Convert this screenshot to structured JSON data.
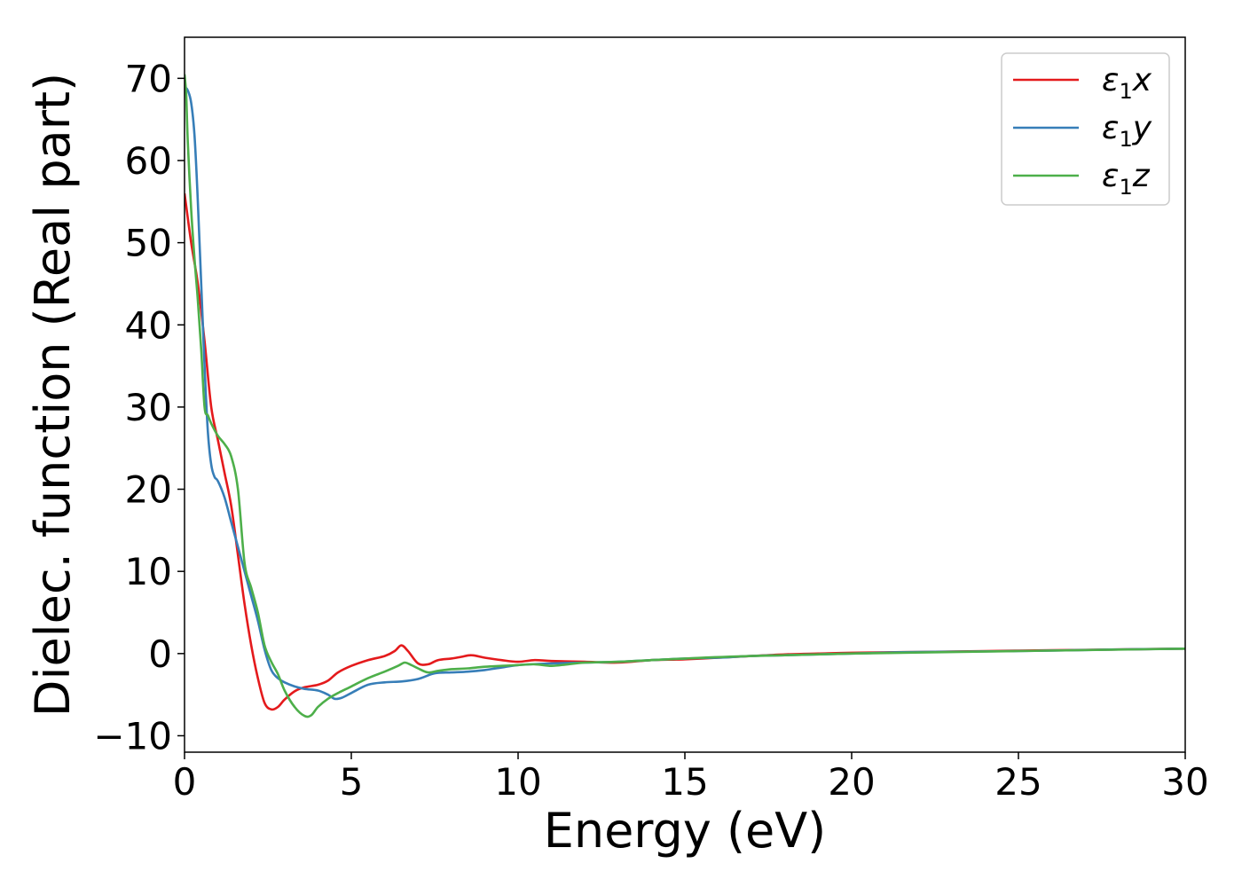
{
  "chart_data": {
    "type": "line",
    "title": "",
    "xlabel": "Energy (eV)",
    "ylabel": "Dielec. function (Real part)",
    "xlim": [
      0,
      30
    ],
    "ylim": [
      -12,
      75
    ],
    "xticks": [
      0,
      5,
      10,
      15,
      20,
      25,
      30
    ],
    "xtick_labels": [
      "0",
      "5",
      "10",
      "15",
      "20",
      "25",
      "30"
    ],
    "yticks": [
      -10,
      0,
      10,
      20,
      30,
      40,
      50,
      60,
      70
    ],
    "ytick_labels": [
      "−10",
      "0",
      "10",
      "20",
      "30",
      "40",
      "50",
      "60",
      "70"
    ],
    "grid": false,
    "legend_position": "top-right",
    "series": [
      {
        "name": "ε₁x",
        "legend_main": "ε",
        "legend_sub": "1",
        "legend_var": "x",
        "color": "#e41a1c",
        "x": [
          0,
          0.2,
          0.4,
          0.6,
          0.8,
          1.0,
          1.2,
          1.4,
          1.6,
          1.8,
          2.0,
          2.2,
          2.4,
          2.6,
          2.8,
          3.0,
          3.3,
          3.6,
          4.0,
          4.3,
          4.6,
          5.0,
          5.5,
          6.0,
          6.3,
          6.5,
          6.7,
          7.0,
          7.3,
          7.6,
          8.0,
          8.3,
          8.6,
          9.0,
          9.5,
          10.0,
          10.5,
          11.0,
          12.0,
          13.0,
          14.0,
          15.0,
          16.0,
          17.0,
          18.0,
          19.0,
          20.0,
          22.0,
          24.0,
          26.0,
          28.0,
          30.0
        ],
        "y": [
          56,
          50,
          45,
          38,
          30,
          26,
          22,
          18,
          12,
          6,
          1,
          -3,
          -6,
          -6.8,
          -6.5,
          -5.6,
          -4.6,
          -4.1,
          -3.8,
          -3.3,
          -2.3,
          -1.5,
          -0.8,
          -0.3,
          0.3,
          1.0,
          0.3,
          -1.2,
          -1.3,
          -0.8,
          -0.6,
          -0.4,
          -0.2,
          -0.5,
          -0.8,
          -1.0,
          -0.8,
          -0.9,
          -1.0,
          -1.1,
          -0.8,
          -0.7,
          -0.5,
          -0.3,
          -0.1,
          0.0,
          0.1,
          0.2,
          0.3,
          0.4,
          0.5,
          0.6
        ]
      },
      {
        "name": "ε₁y",
        "legend_main": "ε",
        "legend_sub": "1",
        "legend_var": "y",
        "color": "#377eb8",
        "x": [
          0,
          0.1,
          0.2,
          0.3,
          0.4,
          0.5,
          0.6,
          0.7,
          0.8,
          0.9,
          1.0,
          1.2,
          1.4,
          1.6,
          1.8,
          2.0,
          2.2,
          2.4,
          2.6,
          2.8,
          3.0,
          3.3,
          3.6,
          4.0,
          4.3,
          4.5,
          4.7,
          5.0,
          5.5,
          6.0,
          6.5,
          7.0,
          7.5,
          8.0,
          8.5,
          9.0,
          9.5,
          10.0,
          11.0,
          12.0,
          13.0,
          14.0,
          15.0,
          16.0,
          17.0,
          18.0,
          20.0,
          22.0,
          25.0,
          28.0,
          30.0
        ],
        "y": [
          69,
          68.5,
          67,
          63,
          55,
          45,
          35,
          27,
          23,
          21.5,
          21,
          19,
          16,
          13,
          10,
          7,
          4,
          0.5,
          -2,
          -3,
          -3.5,
          -4,
          -4.3,
          -4.5,
          -5,
          -5.5,
          -5.4,
          -4.8,
          -3.8,
          -3.5,
          -3.4,
          -3.1,
          -2.4,
          -2.3,
          -2.2,
          -2.0,
          -1.7,
          -1.4,
          -1.2,
          -1.1,
          -1.0,
          -0.8,
          -0.6,
          -0.5,
          -0.3,
          -0.2,
          0.0,
          0.2,
          0.3,
          0.5,
          0.6
        ]
      },
      {
        "name": "ε₁z",
        "legend_main": "ε",
        "legend_sub": "1",
        "legend_var": "z",
        "color": "#4daf4a",
        "x": [
          0,
          0.05,
          0.1,
          0.2,
          0.3,
          0.4,
          0.5,
          0.6,
          0.7,
          0.8,
          1.0,
          1.2,
          1.4,
          1.6,
          1.8,
          2.0,
          2.2,
          2.4,
          2.6,
          2.8,
          3.0,
          3.3,
          3.6,
          3.8,
          4.0,
          4.3,
          4.6,
          5.0,
          5.5,
          6.0,
          6.4,
          6.6,
          6.8,
          7.0,
          7.3,
          7.6,
          8.0,
          8.5,
          9.0,
          9.5,
          10.0,
          10.5,
          11.0,
          11.5,
          12.0,
          13.0,
          14.0,
          15.0,
          17.0,
          20.0,
          25.0,
          30.0
        ],
        "y": [
          70.5,
          68,
          62,
          54,
          48,
          43,
          37,
          30,
          29,
          28,
          26.5,
          25.5,
          24,
          20,
          11,
          8,
          5,
          1,
          -1,
          -2.5,
          -4.5,
          -6.5,
          -7.6,
          -7.5,
          -6.5,
          -5.5,
          -4.8,
          -4,
          -3,
          -2.2,
          -1.5,
          -1.1,
          -1.4,
          -1.8,
          -2.3,
          -2.1,
          -1.9,
          -1.8,
          -1.6,
          -1.5,
          -1.4,
          -1.3,
          -1.5,
          -1.3,
          -1.1,
          -1.0,
          -0.8,
          -0.6,
          -0.3,
          0.0,
          0.3,
          0.6
        ]
      }
    ]
  }
}
